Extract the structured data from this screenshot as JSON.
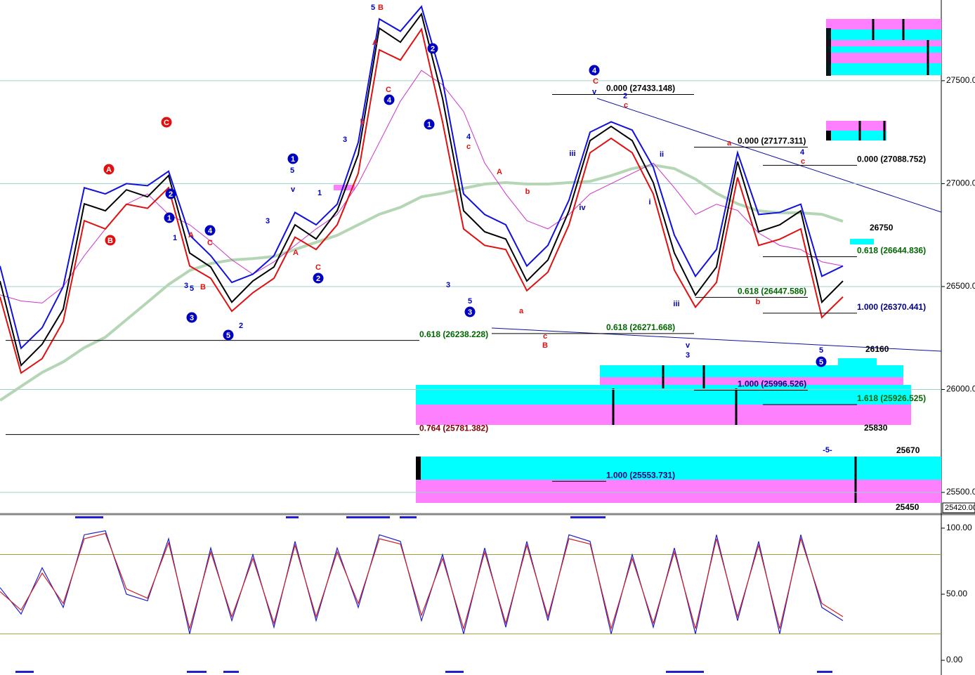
{
  "chart_data": [
    {
      "type": "line",
      "ylim": [
        25408,
        27892
      ],
      "yticks": [
        {
          "value": 25500,
          "label": "25500.00"
        },
        {
          "value": 26000,
          "label": "26000.00"
        },
        {
          "value": 26500,
          "label": "26500.00"
        },
        {
          "value": 27000,
          "label": "27000.00"
        },
        {
          "value": 27500,
          "label": "27500.00"
        }
      ],
      "grid": true,
      "series": [
        {
          "color": "#000000",
          "values": [
            26527,
            26117,
            26220,
            26390,
            26902,
            26868,
            26970,
            26936,
            27039,
            26663,
            26595,
            26424,
            26527,
            26595,
            26800,
            26731,
            26868,
            27141,
            27755,
            27687,
            27824,
            27414,
            26868,
            26766,
            26731,
            26527,
            26629,
            26868,
            27209,
            27278,
            27209,
            27005,
            26663,
            26458,
            26595,
            27107,
            26766,
            26800,
            26868,
            26424,
            26527
          ]
        },
        {
          "color": "#1010e0",
          "values": [
            26600,
            26200,
            26300,
            26500,
            26980,
            26950,
            27000,
            26990,
            27060,
            26750,
            26650,
            26520,
            26560,
            26650,
            26860,
            26800,
            26900,
            27200,
            27800,
            27740,
            27860,
            27500,
            26950,
            26850,
            26800,
            26600,
            26700,
            26920,
            27250,
            27300,
            27260,
            27080,
            26750,
            26550,
            26680,
            27150,
            26850,
            26860,
            26900,
            26550,
            26600
          ]
        },
        {
          "color": "#e01010",
          "values": [
            26450,
            26080,
            26150,
            26330,
            26820,
            26780,
            26900,
            26880,
            26980,
            26600,
            26540,
            26380,
            26470,
            26540,
            26740,
            26680,
            26800,
            27050,
            27650,
            27600,
            27750,
            27300,
            26780,
            26700,
            26680,
            26480,
            26570,
            26800,
            27150,
            27220,
            27150,
            26950,
            26580,
            26400,
            26520,
            27030,
            26700,
            26730,
            26780,
            26350,
            26450
          ]
        },
        {
          "color": "#cc33cc",
          "values": [
            26460,
            26430,
            26420,
            26500,
            26650,
            26780,
            26900,
            26950,
            26850,
            26800,
            26720,
            26630,
            26560,
            26620,
            26700,
            26780,
            26850,
            27000,
            27200,
            27400,
            27550,
            27480,
            27350,
            27100,
            26950,
            26820,
            26780,
            26850,
            26950,
            27000,
            27050,
            27100,
            26980,
            26850,
            26900,
            26870,
            26760,
            26700,
            26680,
            26620,
            26600
          ]
        },
        {
          "color": "#b5d6b5",
          "values": [
            25947,
            26015,
            26083,
            26134,
            26203,
            26254,
            26339,
            26424,
            26510,
            26578,
            26612,
            26629,
            26636,
            26646,
            26680,
            26715,
            26749,
            26800,
            26851,
            26885,
            26936,
            26953,
            26977,
            26998,
            27005,
            26998,
            26998,
            27005,
            27011,
            27039,
            27073,
            27090,
            27073,
            27022,
            26953,
            26902,
            26868,
            26858,
            26858,
            26851,
            26817
          ]
        }
      ],
      "fib_levels": [
        {
          "label": "0.000 (27433.148)",
          "value": 27433.148
        },
        {
          "label": "0.000 (27177.311)",
          "value": 27177.311
        },
        {
          "label": "0.000 (27088.752)",
          "value": 27088.752
        },
        {
          "label": "0.618 (26644.836)",
          "value": 26644.836
        },
        {
          "label": "0.618 (26447.586)",
          "value": 26447.586
        },
        {
          "label": "1.000 (26370.441)",
          "value": 26370.441
        },
        {
          "label": "0.618 (26271.668)",
          "value": 26271.668
        },
        {
          "label": "0.618 (26238.228)",
          "value": 26238.228
        },
        {
          "label": "1.000 (25996.526)",
          "value": 25996.526
        },
        {
          "label": "1.618 (25926.525)",
          "value": 25926.525
        },
        {
          "label": "0.764 (25781.382)",
          "value": 25781.382
        },
        {
          "label": "1.000 (25553.731)",
          "value": 25553.731
        }
      ],
      "level_labels": [
        26750,
        26160,
        25830,
        25670,
        25450
      ],
      "price_tag": "25420.00",
      "wave_labels": [
        "A",
        "B",
        "C",
        "2",
        "1",
        "4",
        "3",
        "5",
        "1",
        "2",
        "2",
        "4",
        "1",
        "3",
        "4",
        "5",
        "C",
        "v",
        "2",
        "c",
        "a",
        "4",
        "c",
        "A",
        "b",
        "a",
        "c",
        "B",
        "v",
        "3",
        "iii",
        "iv",
        "iii",
        "ii",
        "i",
        "b",
        "5",
        "-5-",
        "3",
        "5",
        "4",
        "c",
        "5",
        "B",
        "A",
        "C",
        "3",
        "b",
        "1",
        "5",
        "v",
        "3",
        "A",
        "C",
        "2",
        "1",
        "3",
        "5",
        "B",
        "C",
        "A"
      ]
    },
    {
      "type": "line",
      "ylim": [
        -10.6,
        109
      ],
      "yticks": [
        {
          "value": 0,
          "label": "0.00"
        },
        {
          "value": 50,
          "label": "50.00"
        },
        {
          "value": 100,
          "label": "100.00"
        }
      ],
      "bands": [
        20,
        80
      ],
      "series": [
        {
          "color": "#2020d0",
          "values": [
            55,
            35,
            70,
            40,
            95,
            98,
            50,
            45,
            92,
            20,
            85,
            30,
            80,
            25,
            90,
            30,
            85,
            40,
            95,
            90,
            30,
            80,
            20,
            85,
            25,
            90,
            30,
            95,
            90,
            20,
            80,
            25,
            85,
            20,
            95,
            30,
            90,
            20,
            95,
            40,
            30
          ]
        },
        {
          "color": "#d02020",
          "values": [
            52,
            38,
            66,
            43,
            92,
            96,
            54,
            47,
            89,
            24,
            82,
            33,
            77,
            28,
            87,
            33,
            82,
            43,
            92,
            88,
            34,
            77,
            24,
            82,
            28,
            87,
            33,
            92,
            88,
            24,
            77,
            28,
            82,
            24,
            92,
            33,
            87,
            24,
            92,
            43,
            33
          ]
        }
      ]
    }
  ]
}
